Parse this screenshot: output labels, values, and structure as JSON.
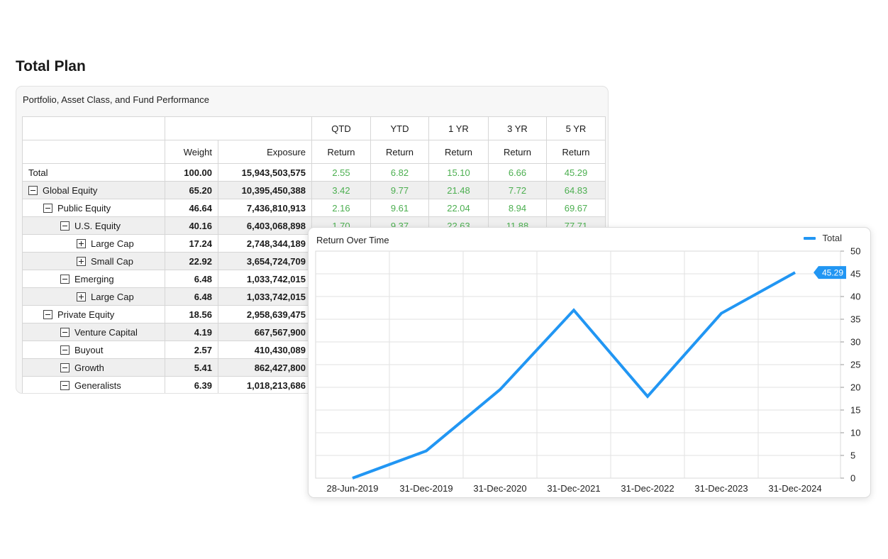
{
  "page": {
    "title": "Total Plan"
  },
  "table": {
    "title": "Portfolio, Asset Class, and Fund Performance",
    "header_top": [
      "QTD",
      "YTD",
      "1 YR",
      "3 YR",
      "5 YR"
    ],
    "header_sub": {
      "weight": "Weight",
      "exposure": "Exposure",
      "return": "Return"
    },
    "rows": [
      {
        "name": "Total",
        "level": 0,
        "toggle": "none",
        "weight": "100.00",
        "exposure": "15,943,503,575",
        "qtd": "2.55",
        "ytd": "6.82",
        "yr1": "15.10",
        "yr3": "6.66",
        "yr5": "45.29"
      },
      {
        "name": "Global Equity",
        "level": 0,
        "toggle": "minus",
        "weight": "65.20",
        "exposure": "10,395,450,388",
        "qtd": "3.42",
        "ytd": "9.77",
        "yr1": "21.48",
        "yr3": "7.72",
        "yr5": "64.83"
      },
      {
        "name": "Public Equity",
        "level": 1,
        "toggle": "minus",
        "weight": "46.64",
        "exposure": "7,436,810,913",
        "qtd": "2.16",
        "ytd": "9.61",
        "yr1": "22.04",
        "yr3": "8.94",
        "yr5": "69.67"
      },
      {
        "name": "U.S. Equity",
        "level": 2,
        "toggle": "minus",
        "weight": "40.16",
        "exposure": "6,403,068,898",
        "qtd": "1.70",
        "ytd": "9.37",
        "yr1": "22.63",
        "yr3": "11.88",
        "yr5": "77.71"
      },
      {
        "name": "Large Cap",
        "level": 3,
        "toggle": "plus",
        "weight": "17.24",
        "exposure": "2,748,344,189",
        "qtd": "",
        "ytd": "",
        "yr1": "",
        "yr3": "",
        "yr5": ""
      },
      {
        "name": "Small Cap",
        "level": 3,
        "toggle": "plus",
        "weight": "22.92",
        "exposure": "3,654,724,709",
        "qtd": "",
        "ytd": "",
        "yr1": "",
        "yr3": "",
        "yr5": ""
      },
      {
        "name": "Emerging",
        "level": 2,
        "toggle": "minus",
        "weight": "6.48",
        "exposure": "1,033,742,015",
        "qtd": "",
        "ytd": "",
        "yr1": "",
        "yr3": "",
        "yr5": ""
      },
      {
        "name": "Large Cap",
        "level": 3,
        "toggle": "plus",
        "weight": "6.48",
        "exposure": "1,033,742,015",
        "qtd": "",
        "ytd": "",
        "yr1": "",
        "yr3": "",
        "yr5": ""
      },
      {
        "name": "Private Equity",
        "level": 1,
        "toggle": "minus",
        "weight": "18.56",
        "exposure": "2,958,639,475",
        "qtd": "",
        "ytd": "",
        "yr1": "",
        "yr3": "",
        "yr5": ""
      },
      {
        "name": "Venture Capital",
        "level": 2,
        "toggle": "minus",
        "weight": "4.19",
        "exposure": "667,567,900",
        "qtd": "",
        "ytd": "",
        "yr1": "",
        "yr3": "",
        "yr5": ""
      },
      {
        "name": "Buyout",
        "level": 2,
        "toggle": "minus",
        "weight": "2.57",
        "exposure": "410,430,089",
        "qtd": "",
        "ytd": "",
        "yr1": "",
        "yr3": "",
        "yr5": ""
      },
      {
        "name": "Growth",
        "level": 2,
        "toggle": "minus",
        "weight": "5.41",
        "exposure": "862,427,800",
        "qtd": "",
        "ytd": "",
        "yr1": "",
        "yr3": "",
        "yr5": ""
      },
      {
        "name": "Generalists",
        "level": 2,
        "toggle": "minus",
        "weight": "6.39",
        "exposure": "1,018,213,686",
        "qtd": "",
        "ytd": "",
        "yr1": "",
        "yr3": "",
        "yr5": ""
      }
    ]
  },
  "chart": {
    "title": "Return Over Time",
    "line_color": "#2196f3",
    "return_color": "#4caf50"
  },
  "chart_data": {
    "type": "line",
    "title": "Return Over Time",
    "x": [
      "28-Jun-2019",
      "31-Dec-2019",
      "31-Dec-2020",
      "31-Dec-2021",
      "31-Dec-2022",
      "31-Dec-2023",
      "31-Dec-2024"
    ],
    "series": [
      {
        "name": "Total",
        "values": [
          0,
          6,
          19.5,
          37,
          18,
          36.3,
          45.29
        ]
      }
    ],
    "ylim": [
      0,
      50
    ],
    "yticks": [
      0,
      5,
      10,
      15,
      20,
      25,
      30,
      35,
      40,
      45,
      50
    ],
    "grid": true,
    "legend": "top-right",
    "last_value_label": "45.29"
  }
}
